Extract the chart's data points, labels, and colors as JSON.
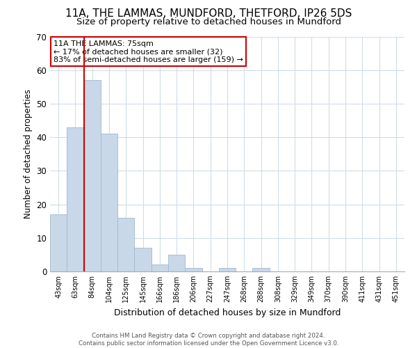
{
  "title": "11A, THE LAMMAS, MUNDFORD, THETFORD, IP26 5DS",
  "subtitle": "Size of property relative to detached houses in Mundford",
  "xlabel": "Distribution of detached houses by size in Mundford",
  "ylabel": "Number of detached properties",
  "categories": [
    "43sqm",
    "63sqm",
    "84sqm",
    "104sqm",
    "125sqm",
    "145sqm",
    "166sqm",
    "186sqm",
    "206sqm",
    "227sqm",
    "247sqm",
    "268sqm",
    "288sqm",
    "308sqm",
    "329sqm",
    "349sqm",
    "370sqm",
    "390sqm",
    "411sqm",
    "431sqm",
    "451sqm"
  ],
  "values": [
    17,
    43,
    57,
    41,
    16,
    7,
    2,
    5,
    1,
    0,
    1,
    0,
    1,
    0,
    0,
    0,
    0,
    0,
    0,
    0,
    0
  ],
  "bar_color": "#c8d8e8",
  "bar_edge_color": "#a0b8d0",
  "vline_color": "#cc0000",
  "vline_x": 1.5,
  "ylim": [
    0,
    70
  ],
  "yticks": [
    0,
    10,
    20,
    30,
    40,
    50,
    60,
    70
  ],
  "annotation_title": "11A THE LAMMAS: 75sqm",
  "annotation_line1": "← 17% of detached houses are smaller (32)",
  "annotation_line2": "83% of semi-detached houses are larger (159) →",
  "annotation_box_color": "#ffffff",
  "annotation_box_edge": "#cc0000",
  "footer_line1": "Contains HM Land Registry data © Crown copyright and database right 2024.",
  "footer_line2": "Contains public sector information licensed under the Open Government Licence v3.0.",
  "background_color": "#ffffff",
  "grid_color": "#d0dce8",
  "title_fontsize": 11,
  "subtitle_fontsize": 9.5
}
